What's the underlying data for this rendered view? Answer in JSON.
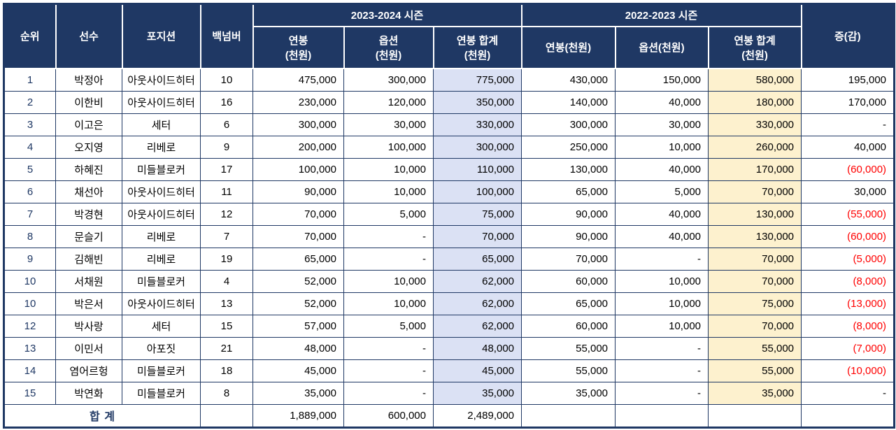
{
  "table": {
    "columns": {
      "rank": "순위",
      "player": "선수",
      "position": "포지션",
      "back_number": "백넘버",
      "diff": "증(감)"
    },
    "season_groups": [
      {
        "label": "2023-2024 시즌",
        "sub": [
          "연봉\n(천원)",
          "옵션\n(천원)",
          "연봉 합계\n(천원)"
        ]
      },
      {
        "label": "2022-2023 시즌",
        "sub": [
          "연봉(천원)",
          "옵션(천원)",
          "연봉 합계\n(천원)"
        ]
      }
    ],
    "rows": [
      {
        "rank": "1",
        "name": "박정아",
        "position": "아웃사이드히터",
        "back": "10",
        "cells": [
          "475,000",
          "300,000",
          "775,000",
          "430,000",
          "150,000",
          "580,000"
        ],
        "diff": "195,000",
        "diff_neg": false
      },
      {
        "rank": "2",
        "name": "이한비",
        "position": "아웃사이드히터",
        "back": "16",
        "cells": [
          "230,000",
          "120,000",
          "350,000",
          "140,000",
          "40,000",
          "180,000"
        ],
        "diff": "170,000",
        "diff_neg": false
      },
      {
        "rank": "3",
        "name": "이고은",
        "position": "세터",
        "back": "6",
        "cells": [
          "300,000",
          "30,000",
          "330,000",
          "300,000",
          "30,000",
          "330,000"
        ],
        "diff": "-",
        "diff_neg": false
      },
      {
        "rank": "4",
        "name": "오지영",
        "position": "리베로",
        "back": "9",
        "cells": [
          "200,000",
          "100,000",
          "300,000",
          "250,000",
          "10,000",
          "260,000"
        ],
        "diff": "40,000",
        "diff_neg": false
      },
      {
        "rank": "5",
        "name": "하혜진",
        "position": "미들블로커",
        "back": "17",
        "cells": [
          "100,000",
          "10,000",
          "110,000",
          "130,000",
          "40,000",
          "170,000"
        ],
        "diff": "(60,000)",
        "diff_neg": true
      },
      {
        "rank": "6",
        "name": "채선아",
        "position": "아웃사이드히터",
        "back": "11",
        "cells": [
          "90,000",
          "10,000",
          "100,000",
          "65,000",
          "5,000",
          "70,000"
        ],
        "diff": "30,000",
        "diff_neg": false
      },
      {
        "rank": "7",
        "name": "박경현",
        "position": "아웃사이드히터",
        "back": "12",
        "cells": [
          "70,000",
          "5,000",
          "75,000",
          "90,000",
          "40,000",
          "130,000"
        ],
        "diff": "(55,000)",
        "diff_neg": true
      },
      {
        "rank": "8",
        "name": "문슬기",
        "position": "리베로",
        "back": "7",
        "cells": [
          "70,000",
          "-",
          "70,000",
          "90,000",
          "40,000",
          "130,000"
        ],
        "diff": "(60,000)",
        "diff_neg": true
      },
      {
        "rank": "9",
        "name": "김해빈",
        "position": "리베로",
        "back": "19",
        "cells": [
          "65,000",
          "-",
          "65,000",
          "70,000",
          "-",
          "70,000"
        ],
        "diff": "(5,000)",
        "diff_neg": true
      },
      {
        "rank": "10",
        "name": "서채원",
        "position": "미들블로커",
        "back": "4",
        "cells": [
          "52,000",
          "10,000",
          "62,000",
          "60,000",
          "10,000",
          "70,000"
        ],
        "diff": "(8,000)",
        "diff_neg": true
      },
      {
        "rank": "10",
        "name": "박은서",
        "position": "아웃사이드히터",
        "back": "13",
        "cells": [
          "52,000",
          "10,000",
          "62,000",
          "65,000",
          "10,000",
          "75,000"
        ],
        "diff": "(13,000)",
        "diff_neg": true
      },
      {
        "rank": "12",
        "name": "박사랑",
        "position": "세터",
        "back": "15",
        "cells": [
          "57,000",
          "5,000",
          "62,000",
          "60,000",
          "10,000",
          "70,000"
        ],
        "diff": "(8,000)",
        "diff_neg": true
      },
      {
        "rank": "13",
        "name": "이민서",
        "position": "아포짓",
        "back": "21",
        "cells": [
          "48,000",
          "-",
          "48,000",
          "55,000",
          "-",
          "55,000"
        ],
        "diff": "(7,000)",
        "diff_neg": true
      },
      {
        "rank": "14",
        "name": "염어르헝",
        "position": "미들블로커",
        "back": "18",
        "cells": [
          "45,000",
          "-",
          "45,000",
          "55,000",
          "-",
          "55,000"
        ],
        "diff": "(10,000)",
        "diff_neg": true
      },
      {
        "rank": "15",
        "name": "박연화",
        "position": "미들블로커",
        "back": "8",
        "cells": [
          "35,000",
          "-",
          "35,000",
          "35,000",
          "-",
          "35,000"
        ],
        "diff": "-",
        "diff_neg": false
      }
    ],
    "total": {
      "label": "합 계",
      "salary_2324": "1,889,000",
      "option_2324": "600,000",
      "sum_2324": "2,489,000"
    }
  },
  "colors": {
    "header_bg": "#1F3864",
    "highlight_blue": "#DBE1F4",
    "highlight_yellow": "#FDF1CE",
    "negative_red": "#FF0000",
    "accent_navy": "#1F3864"
  }
}
